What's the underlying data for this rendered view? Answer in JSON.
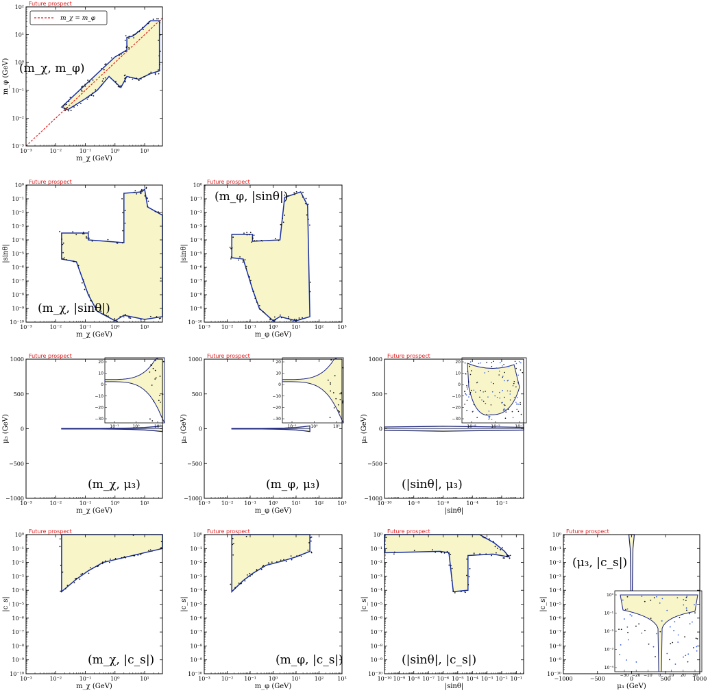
{
  "figure_tag": "Future prospect",
  "colors": {
    "fill": "#f8f6c8",
    "outer_contour": "#1a237e",
    "inner_contour": "#2b55e0",
    "points": "#111111",
    "tag": "#e41a1c",
    "diagonal": "#e41a1c"
  },
  "chart_data": [
    {
      "id": "mchi-mphi",
      "type": "region",
      "annotation": "(m_χ, m_φ)",
      "xlabel": "m_χ (GeV)",
      "ylabel": "m_φ (GeV)",
      "xscale": "log",
      "yscale": "log",
      "xlim": [
        -3,
        1.6
      ],
      "ylim": [
        -3,
        2
      ],
      "xticks": [
        "10⁻³",
        "10⁻²",
        "10⁻¹",
        "10⁰",
        "10¹"
      ],
      "yticks": [
        "10⁻³",
        "10⁻²",
        "10⁻¹",
        "10⁰",
        "10¹",
        "10²"
      ],
      "legend": {
        "label": "m_χ = m_φ",
        "placement": "top-left"
      },
      "region_log10": [
        [
          -1.8,
          -1.6
        ],
        [
          -1.4,
          -1.2
        ],
        [
          -1.0,
          -0.8
        ],
        [
          -0.6,
          -0.4
        ],
        [
          0.0,
          0.2
        ],
        [
          0.4,
          0.45
        ],
        [
          0.4,
          0.9
        ],
        [
          0.6,
          0.95
        ],
        [
          0.9,
          1.2
        ],
        [
          1.2,
          1.5
        ],
        [
          1.5,
          1.5
        ],
        [
          1.5,
          -0.3
        ],
        [
          1.2,
          -0.4
        ],
        [
          0.8,
          -0.6
        ],
        [
          0.4,
          -0.5
        ],
        [
          0.2,
          -0.9
        ],
        [
          -0.2,
          -0.5
        ],
        [
          -0.6,
          -1.0
        ],
        [
          -1.0,
          -1.3
        ],
        [
          -1.6,
          -1.7
        ]
      ]
    },
    {
      "id": "mchi-sin",
      "type": "region",
      "annotation": "(m_χ, |sinθ|)",
      "xlabel": "m_χ (GeV)",
      "ylabel": "|sinθ|",
      "xscale": "log",
      "yscale": "log",
      "xlim": [
        -3,
        1.6
      ],
      "ylim": [
        -10,
        0
      ],
      "xticks": [
        "10⁻³",
        "10⁻²",
        "10⁻¹",
        "10⁰",
        "10¹"
      ],
      "yticks": [
        "10⁻¹⁰",
        "10⁻⁹",
        "10⁻⁸",
        "10⁻⁷",
        "10⁻⁶",
        "10⁻⁵",
        "10⁻⁴",
        "10⁻³",
        "10⁻²",
        "10⁻¹",
        "10⁰"
      ],
      "region_log10": [
        [
          -1.8,
          -3.5
        ],
        [
          -0.9,
          -3.5
        ],
        [
          -0.9,
          -4.0
        ],
        [
          0.3,
          -4.2
        ],
        [
          0.3,
          -0.6
        ],
        [
          0.9,
          -0.5
        ],
        [
          1.0,
          -0.3
        ],
        [
          1.1,
          -1.6
        ],
        [
          1.6,
          -2.2
        ],
        [
          1.6,
          -9.6
        ],
        [
          1.0,
          -9.8
        ],
        [
          0.3,
          -9.5
        ],
        [
          0.0,
          -9.9
        ],
        [
          -0.6,
          -9.2
        ],
        [
          -0.9,
          -8.0
        ],
        [
          -1.3,
          -5.6
        ],
        [
          -1.8,
          -5.4
        ]
      ]
    },
    {
      "id": "mphi-sin",
      "type": "region",
      "annotation": "(m_φ, |sinθ|)",
      "xlabel": "m_φ (GeV)",
      "ylabel": "|sinθ|",
      "xscale": "log",
      "yscale": "log",
      "xlim": [
        -3,
        3
      ],
      "ylim": [
        -10,
        0
      ],
      "xticks": [
        "10⁻³",
        "10⁻²",
        "10⁻¹",
        "10⁰",
        "10¹",
        "10²",
        "10³"
      ],
      "yticks": [
        "10⁻¹⁰",
        "10⁻⁹",
        "10⁻⁸",
        "10⁻⁷",
        "10⁻⁶",
        "10⁻⁵",
        "10⁻⁴",
        "10⁻³",
        "10⁻²",
        "10⁻¹",
        "10⁰"
      ],
      "region_log10": [
        [
          -1.8,
          -3.6
        ],
        [
          -0.9,
          -3.6
        ],
        [
          -0.9,
          -4.1
        ],
        [
          0.3,
          -4.0
        ],
        [
          0.5,
          -0.9
        ],
        [
          1.2,
          -0.5
        ],
        [
          1.5,
          -1.5
        ],
        [
          1.6,
          -9.6
        ],
        [
          1.0,
          -9.9
        ],
        [
          0.3,
          -9.6
        ],
        [
          0.0,
          -9.9
        ],
        [
          -0.6,
          -9.0
        ],
        [
          -0.9,
          -7.6
        ],
        [
          -1.3,
          -5.4
        ],
        [
          -1.8,
          -5.3
        ]
      ]
    },
    {
      "id": "mchi-mu3",
      "type": "band",
      "annotation": "(m_χ, μ₃)",
      "xlabel": "m_χ (GeV)",
      "ylabel": "μ₃ (GeV)",
      "xscale": "log",
      "yscale": "linear",
      "xlim": [
        -3,
        1.6
      ],
      "ylim": [
        -1000,
        1000
      ],
      "xticks": [
        "10⁻³",
        "10⁻²",
        "10⁻¹",
        "10⁰",
        "10¹"
      ],
      "yticks": [
        "−1000",
        "−500",
        "0",
        "500",
        "1000"
      ],
      "band_log10x": {
        "x": [
          -1.8,
          -1.0,
          -0.5,
          0.0,
          0.5,
          1.0,
          1.3,
          1.6
        ],
        "half_width": [
          3,
          3,
          4,
          6,
          10,
          18,
          28,
          40
        ]
      },
      "inset": {
        "type": "band",
        "xticks": [
          "10⁻¹",
          "10⁰",
          "10¹"
        ],
        "yticks": [
          "20",
          "10",
          "0",
          "−10",
          "−20",
          "−30"
        ],
        "ylim": [
          -35,
          32
        ]
      }
    },
    {
      "id": "mphi-mu3",
      "type": "band",
      "annotation": "(m_φ, μ₃)",
      "xlabel": "m_φ (GeV)",
      "ylabel": "μ₃ (GeV)",
      "xscale": "log",
      "yscale": "linear",
      "xlim": [
        -3,
        3
      ],
      "ylim": [
        -1000,
        1000
      ],
      "xticks": [
        "10⁻³",
        "10⁻²",
        "10⁻¹",
        "10⁰",
        "10¹",
        "10²",
        "10³"
      ],
      "yticks": [
        "−1000",
        "−500",
        "0",
        "500",
        "1000"
      ],
      "band_log10x": {
        "x": [
          -1.8,
          -1.0,
          -0.5,
          0.0,
          0.5,
          1.0,
          1.3,
          1.6
        ],
        "half_width": [
          3,
          3,
          4,
          6,
          10,
          18,
          28,
          40
        ]
      },
      "inset": {
        "type": "band",
        "xticks": [
          "10⁻¹",
          "10⁰",
          "10¹"
        ],
        "yticks": [
          "20",
          "10",
          "0",
          "−10",
          "−20",
          "−30"
        ],
        "ylim": [
          -35,
          32
        ]
      }
    },
    {
      "id": "sin-mu3",
      "type": "band",
      "annotation": "(|sinθ|, μ₃)",
      "xlabel": "|sinθ|",
      "ylabel": "μ₃ (GeV)",
      "xscale": "log",
      "yscale": "linear",
      "xlim": [
        -10,
        -0.5
      ],
      "ylim": [
        -1000,
        1000
      ],
      "xticks": [
        "10⁻¹⁰",
        "10⁻⁸",
        "10⁻⁶",
        "10⁻⁴",
        "10⁻²"
      ],
      "yticks": [
        "−1000",
        "−500",
        "0",
        "500",
        "1000"
      ],
      "band_log10x": {
        "x": [
          -10,
          -8,
          -6,
          -4,
          -2,
          -0.5
        ],
        "half_width": [
          25,
          30,
          35,
          30,
          25,
          20
        ]
      },
      "inset": {
        "type": "blob",
        "xticks": [
          "10⁻⁸",
          "10⁻⁵",
          "10⁻²"
        ],
        "yticks": [
          "20",
          "10",
          "0",
          "−10",
          "−20",
          "−30"
        ],
        "ylim": [
          -35,
          32
        ]
      }
    },
    {
      "id": "mchi-cs",
      "type": "region",
      "annotation": "(m_χ, |c_s|)",
      "xlabel": "m_χ (GeV)",
      "ylabel": "|c_s|",
      "xscale": "log",
      "yscale": "log",
      "xlim": [
        -3,
        1.6
      ],
      "ylim": [
        -10,
        0
      ],
      "xticks": [
        "10⁻³",
        "10⁻²",
        "10⁻¹",
        "10⁰",
        "10¹"
      ],
      "yticks": [
        "10⁻¹⁰",
        "10⁻⁹",
        "10⁻⁸",
        "10⁻⁷",
        "10⁻⁶",
        "10⁻⁵",
        "10⁻⁴",
        "10⁻³",
        "10⁻²",
        "10⁻¹",
        "10⁰"
      ],
      "region_log10": [
        [
          -1.8,
          0
        ],
        [
          1.6,
          0
        ],
        [
          1.6,
          -1.0
        ],
        [
          0.8,
          -1.4
        ],
        [
          0.2,
          -1.7
        ],
        [
          -0.4,
          -2.0
        ],
        [
          -0.9,
          -2.6
        ],
        [
          -1.3,
          -3.2
        ],
        [
          -1.8,
          -4.1
        ]
      ]
    },
    {
      "id": "mphi-cs",
      "type": "region",
      "annotation": "(m_φ, |c_s|)",
      "xlabel": "m_φ (GeV)",
      "ylabel": "|c_s|",
      "xscale": "log",
      "yscale": "log",
      "xlim": [
        -3,
        3
      ],
      "ylim": [
        -10,
        0
      ],
      "xticks": [
        "10⁻³",
        "10⁻²",
        "10⁻¹",
        "10⁰",
        "10¹",
        "10²",
        "10³"
      ],
      "yticks": [
        "10⁻¹⁰",
        "10⁻⁹",
        "10⁻⁸",
        "10⁻⁷",
        "10⁻⁶",
        "10⁻⁵",
        "10⁻⁴",
        "10⁻³",
        "10⁻²",
        "10⁻¹",
        "10⁰"
      ],
      "region_log10": [
        [
          -1.8,
          0
        ],
        [
          1.6,
          0
        ],
        [
          1.6,
          -1.2
        ],
        [
          1.0,
          -1.6
        ],
        [
          0.4,
          -1.9
        ],
        [
          -0.3,
          -2.2
        ],
        [
          -0.9,
          -2.8
        ],
        [
          -1.3,
          -3.3
        ],
        [
          -1.8,
          -4.1
        ]
      ]
    },
    {
      "id": "sin-cs",
      "type": "region",
      "annotation": "(|sinθ|, |c_s|)",
      "xlabel": "|sinθ|",
      "ylabel": "|c_s|",
      "xscale": "log",
      "yscale": "log",
      "xlim": [
        -10,
        -0.5
      ],
      "ylim": [
        -10,
        0
      ],
      "xticks": [
        "10⁻¹⁰",
        "10⁻⁹",
        "10⁻⁸",
        "10⁻⁷",
        "10⁻⁶",
        "10⁻⁵",
        "10⁻⁴",
        "10⁻³",
        "10⁻²",
        "10⁻¹"
      ],
      "yticks": [
        "10⁻¹⁰",
        "10⁻⁹",
        "10⁻⁸",
        "10⁻⁷",
        "10⁻⁶",
        "10⁻⁵",
        "10⁻⁴",
        "10⁻³",
        "10⁻²",
        "10⁻¹",
        "10⁰"
      ],
      "region_log10": [
        [
          -10,
          0
        ],
        [
          -3.5,
          0
        ],
        [
          -2.5,
          -0.6
        ],
        [
          -1.8,
          -1.2
        ],
        [
          -1.5,
          -1.6
        ],
        [
          -2.6,
          -1.4
        ],
        [
          -4.3,
          -1.5
        ],
        [
          -4.3,
          -4.0
        ],
        [
          -5.3,
          -4.1
        ],
        [
          -5.6,
          -1.3
        ],
        [
          -6.2,
          -1.2
        ],
        [
          -10,
          -1.3
        ]
      ]
    },
    {
      "id": "mu3-cs",
      "type": "needle",
      "annotation": "(μ₃, |c_s|)",
      "xlabel": "μ₃ (GeV)",
      "ylabel": "|c_s|",
      "xscale": "linear",
      "yscale": "log",
      "xlim": [
        -1000,
        1000
      ],
      "ylim": [
        -10,
        0
      ],
      "xticks": [
        "−1000",
        "−500",
        "0",
        "500",
        "1000"
      ],
      "yticks": [
        "10⁻¹⁰",
        "10⁻⁹",
        "10⁻⁸",
        "10⁻⁷",
        "10⁻⁶",
        "10⁻⁵",
        "10⁻⁴",
        "10⁻³",
        "10⁻²",
        "10⁻¹",
        "10⁰"
      ],
      "inset": {
        "type": "funnel",
        "xticks": [
          "−30",
          "−20",
          "−10",
          "0",
          "10",
          "20",
          "30"
        ],
        "yticks": [
          "10⁰",
          "10⁻¹",
          "10⁻²",
          "10⁻³",
          "10⁻⁴"
        ],
        "xlim": [
          -35,
          35
        ],
        "ylim": [
          -4,
          0
        ]
      }
    }
  ]
}
